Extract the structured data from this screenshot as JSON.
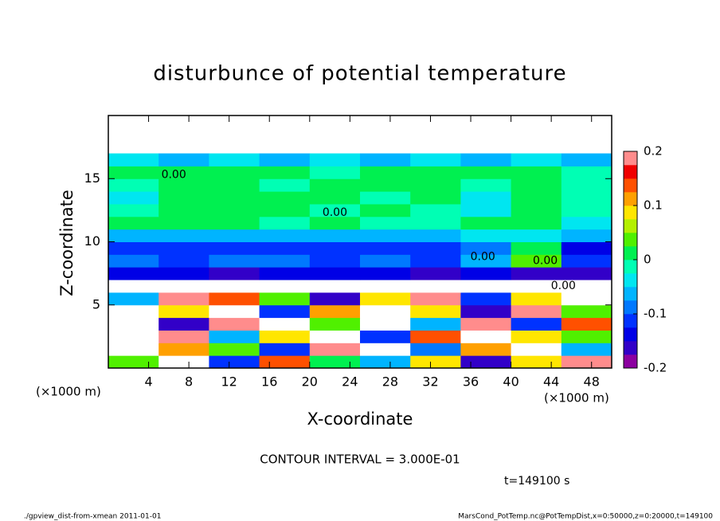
{
  "chart_data": {
    "type": "heatmap",
    "title": "disturbunce of potential temperature",
    "x_label": "X-coordinate",
    "y_label": "Z-coordinate",
    "x_unit": "(×1000 m)",
    "y_unit": "(×1000 m)",
    "contour_interval": "CONTOUR INTERVAL = 3.000E-01",
    "time_label": "t=149100 s",
    "footer_left": "./gpview_dist-from-xmean  2011-01-01",
    "footer_right": "MarsCond_PotTemp.nc@PotTempDist,x=0:50000,z=0:20000,t=149100",
    "xlim": [
      0,
      50
    ],
    "ylim": [
      0,
      20
    ],
    "xticks": [
      4,
      8,
      12,
      16,
      20,
      24,
      28,
      32,
      36,
      40,
      44,
      48
    ],
    "yticks": [
      5,
      10,
      15
    ],
    "x_edges": [
      0,
      5,
      10,
      15,
      20,
      25,
      30,
      35,
      40,
      45,
      50
    ],
    "y_edges": [
      0,
      1,
      2,
      3,
      4,
      5,
      6,
      7,
      8,
      9,
      10,
      11,
      12,
      13,
      14,
      15,
      16,
      17,
      18,
      19,
      20
    ],
    "z": [
      [
        0.05,
        0.3,
        -0.1,
        0.15,
        0.02,
        -0.05,
        0.1,
        -0.15,
        0.08,
        0.2
      ],
      [
        0.3,
        0.12,
        0.05,
        -0.12,
        0.18,
        0.3,
        -0.08,
        0.12,
        0.25,
        -0.05
      ],
      [
        0.25,
        0.2,
        -0.05,
        0.08,
        0.3,
        -0.1,
        0.15,
        0.3,
        0.1,
        0.05
      ],
      [
        0.3,
        -0.15,
        0.18,
        0.25,
        0.05,
        0.22,
        -0.05,
        0.18,
        -0.12,
        0.15
      ],
      [
        0.25,
        0.1,
        0.3,
        -0.1,
        0.12,
        0.28,
        0.1,
        -0.15,
        0.2,
        0.05
      ],
      [
        -0.05,
        0.2,
        0.15,
        0.05,
        -0.15,
        0.1,
        0.18,
        -0.1,
        0.08,
        0.22
      ],
      [
        -0.3,
        -0.3,
        -0.3,
        -0.3,
        -0.3,
        -0.3,
        -0.3,
        -0.3,
        -0.3,
        -0.3
      ],
      [
        -0.13,
        -0.14,
        -0.15,
        -0.14,
        -0.13,
        -0.14,
        -0.15,
        -0.14,
        -0.15,
        -0.16
      ],
      [
        -0.08,
        -0.1,
        -0.09,
        -0.08,
        -0.1,
        -0.09,
        -0.1,
        -0.06,
        0.04,
        -0.12
      ],
      [
        -0.12,
        -0.11,
        -0.12,
        -0.1,
        -0.12,
        -0.11,
        -0.1,
        -0.08,
        0.02,
        -0.14
      ],
      [
        -0.06,
        -0.05,
        -0.06,
        -0.05,
        -0.06,
        -0.06,
        -0.05,
        -0.04,
        -0.03,
        -0.07
      ],
      [
        0.01,
        0.02,
        0.01,
        0.0,
        0.01,
        0.0,
        -0.02,
        0.02,
        0.02,
        -0.03
      ],
      [
        -0.02,
        0.01,
        0.02,
        0.01,
        0.0,
        0.02,
        0.0,
        -0.03,
        0.01,
        -0.02
      ],
      [
        -0.03,
        0.01,
        0.02,
        0.01,
        0.02,
        0.0,
        0.01,
        -0.04,
        0.01,
        -0.01
      ],
      [
        0.0,
        0.02,
        0.01,
        0.0,
        0.02,
        0.01,
        0.02,
        0.0,
        0.01,
        0.0
      ],
      [
        0.01,
        0.02,
        0.01,
        0.02,
        0.0,
        0.01,
        0.02,
        0.01,
        0.02,
        -0.01
      ],
      [
        -0.04,
        -0.05,
        -0.04,
        -0.05,
        -0.04,
        -0.05,
        -0.04,
        -0.05,
        -0.04,
        -0.05
      ],
      [
        null,
        null,
        null,
        null,
        null,
        null,
        null,
        null,
        null,
        null
      ],
      [
        null,
        null,
        null,
        null,
        null,
        null,
        null,
        null,
        null,
        null
      ],
      [
        null,
        null,
        null,
        null,
        null,
        null,
        null,
        null,
        null,
        null
      ]
    ],
    "colorbar": {
      "lim": [
        -0.2,
        0.2
      ],
      "ticks": [
        -0.2,
        -0.1,
        0,
        0.1,
        0.2
      ],
      "levels": [
        -0.2,
        -0.175,
        -0.15,
        -0.125,
        -0.1,
        -0.075,
        -0.05,
        -0.025,
        0,
        0.025,
        0.05,
        0.075,
        0.1,
        0.125,
        0.15,
        0.175,
        0.2
      ],
      "colors": [
        "#8c00a0",
        "#3200c8",
        "#0000e6",
        "#0032ff",
        "#0078ff",
        "#00b4ff",
        "#00e6f0",
        "#00ffb4",
        "#00f050",
        "#50f000",
        "#b4f000",
        "#ffe600",
        "#ffa000",
        "#ff5000",
        "#f00000",
        "#ff8c8c"
      ]
    },
    "contour_labels": [
      {
        "value": 0,
        "label": "0.00",
        "x": 6.5,
        "z": 15.3
      },
      {
        "value": 0,
        "label": "0.00",
        "x": 22.5,
        "z": 12.3
      },
      {
        "value": 0,
        "label": "0.00",
        "x": 37.2,
        "z": 8.8
      },
      {
        "value": 0,
        "label": "0.00",
        "x": 43.4,
        "z": 8.5
      },
      {
        "value": 0,
        "label": "0.00",
        "x": 45.2,
        "z": 6.5
      }
    ]
  }
}
